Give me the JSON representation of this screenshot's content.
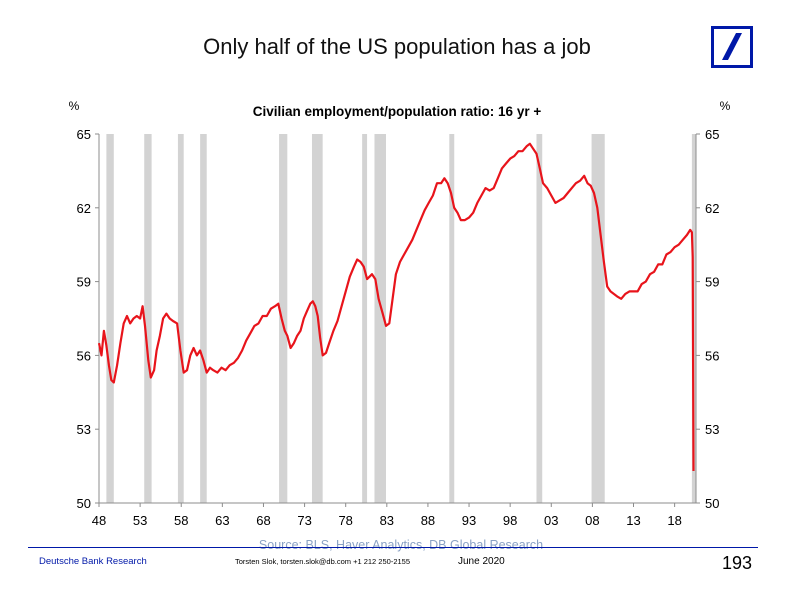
{
  "slide": {
    "title": "Only half of the US population has a job",
    "page_number": "193",
    "footer_org": "Deutsche Bank Research",
    "footer_contact": "Torsten Slok, torsten.slok@db.com  +1 212 250-2155",
    "footer_date": "June 2020",
    "source": "Source: BLS, Haver Analytics, DB Global Research"
  },
  "colors": {
    "line": "#e8141b",
    "recession": "#d3d3d3",
    "brand_blue": "#0018a8",
    "source_text": "#8aa2c4"
  },
  "logo": {
    "icon": "deutsche-bank-slash-icon"
  },
  "chart_data": {
    "type": "line",
    "title": "Civilian employment/population ratio: 16 yr +",
    "left_axis_unit": "%",
    "right_axis_unit": "%",
    "xlim": [
      1948,
      2020.6
    ],
    "ylim": [
      50,
      65
    ],
    "yticks": [
      50,
      53,
      56,
      59,
      62,
      65
    ],
    "xtick_values": [
      1948,
      1953,
      1958,
      1963,
      1968,
      1973,
      1978,
      1983,
      1988,
      1993,
      1998,
      2003,
      2008,
      2013,
      2018
    ],
    "xtick_labels": [
      "48",
      "53",
      "58",
      "63",
      "68",
      "73",
      "78",
      "83",
      "88",
      "93",
      "98",
      "03",
      "08",
      "13",
      "18"
    ],
    "grid": false,
    "recessions": [
      [
        1948.9,
        1949.8
      ],
      [
        1953.5,
        1954.4
      ],
      [
        1957.6,
        1958.3
      ],
      [
        1960.3,
        1961.1
      ],
      [
        1969.9,
        1970.9
      ],
      [
        1973.9,
        1975.2
      ],
      [
        1980.0,
        1980.6
      ],
      [
        1981.5,
        1982.9
      ],
      [
        1990.6,
        1991.2
      ],
      [
        2001.2,
        2001.9
      ],
      [
        2007.9,
        2009.5
      ],
      [
        2020.1,
        2020.4
      ]
    ],
    "series": [
      {
        "color": "#e8141b",
        "points": [
          [
            1948.0,
            56.5
          ],
          [
            1948.3,
            56.0
          ],
          [
            1948.6,
            57.0
          ],
          [
            1948.9,
            56.4
          ],
          [
            1949.2,
            55.6
          ],
          [
            1949.5,
            55.0
          ],
          [
            1949.8,
            54.9
          ],
          [
            1950.2,
            55.6
          ],
          [
            1950.6,
            56.5
          ],
          [
            1951.0,
            57.3
          ],
          [
            1951.4,
            57.6
          ],
          [
            1951.8,
            57.3
          ],
          [
            1952.2,
            57.5
          ],
          [
            1952.6,
            57.6
          ],
          [
            1953.0,
            57.5
          ],
          [
            1953.3,
            58.0
          ],
          [
            1953.6,
            57.2
          ],
          [
            1954.0,
            55.8
          ],
          [
            1954.3,
            55.1
          ],
          [
            1954.7,
            55.4
          ],
          [
            1955.0,
            56.2
          ],
          [
            1955.4,
            56.8
          ],
          [
            1955.8,
            57.5
          ],
          [
            1956.2,
            57.7
          ],
          [
            1956.6,
            57.5
          ],
          [
            1957.0,
            57.4
          ],
          [
            1957.5,
            57.3
          ],
          [
            1957.9,
            56.2
          ],
          [
            1958.3,
            55.3
          ],
          [
            1958.7,
            55.4
          ],
          [
            1959.1,
            56.0
          ],
          [
            1959.5,
            56.3
          ],
          [
            1959.9,
            56.0
          ],
          [
            1960.3,
            56.2
          ],
          [
            1960.7,
            55.8
          ],
          [
            1961.1,
            55.3
          ],
          [
            1961.5,
            55.5
          ],
          [
            1961.9,
            55.4
          ],
          [
            1962.4,
            55.3
          ],
          [
            1962.9,
            55.5
          ],
          [
            1963.4,
            55.4
          ],
          [
            1963.9,
            55.6
          ],
          [
            1964.4,
            55.7
          ],
          [
            1964.9,
            55.9
          ],
          [
            1965.4,
            56.2
          ],
          [
            1965.9,
            56.6
          ],
          [
            1966.4,
            56.9
          ],
          [
            1966.9,
            57.2
          ],
          [
            1967.4,
            57.3
          ],
          [
            1967.9,
            57.6
          ],
          [
            1968.4,
            57.6
          ],
          [
            1968.9,
            57.9
          ],
          [
            1969.4,
            58.0
          ],
          [
            1969.8,
            58.1
          ],
          [
            1970.2,
            57.5
          ],
          [
            1970.6,
            57.0
          ],
          [
            1970.9,
            56.8
          ],
          [
            1971.3,
            56.3
          ],
          [
            1971.7,
            56.5
          ],
          [
            1972.1,
            56.8
          ],
          [
            1972.5,
            57.0
          ],
          [
            1972.9,
            57.5
          ],
          [
            1973.3,
            57.8
          ],
          [
            1973.7,
            58.1
          ],
          [
            1974.0,
            58.2
          ],
          [
            1974.3,
            58.0
          ],
          [
            1974.6,
            57.6
          ],
          [
            1974.9,
            56.7
          ],
          [
            1975.2,
            56.0
          ],
          [
            1975.6,
            56.1
          ],
          [
            1976.0,
            56.5
          ],
          [
            1976.5,
            57.0
          ],
          [
            1977.0,
            57.4
          ],
          [
            1977.5,
            58.0
          ],
          [
            1978.0,
            58.6
          ],
          [
            1978.5,
            59.2
          ],
          [
            1979.0,
            59.6
          ],
          [
            1979.4,
            59.9
          ],
          [
            1979.8,
            59.8
          ],
          [
            1980.2,
            59.6
          ],
          [
            1980.6,
            59.1
          ],
          [
            1980.9,
            59.2
          ],
          [
            1981.2,
            59.3
          ],
          [
            1981.6,
            59.1
          ],
          [
            1982.0,
            58.3
          ],
          [
            1982.5,
            57.7
          ],
          [
            1982.9,
            57.2
          ],
          [
            1983.3,
            57.3
          ],
          [
            1983.7,
            58.3
          ],
          [
            1984.1,
            59.3
          ],
          [
            1984.6,
            59.8
          ],
          [
            1985.1,
            60.1
          ],
          [
            1985.6,
            60.4
          ],
          [
            1986.1,
            60.7
          ],
          [
            1986.6,
            61.1
          ],
          [
            1987.1,
            61.5
          ],
          [
            1987.6,
            61.9
          ],
          [
            1988.1,
            62.2
          ],
          [
            1988.6,
            62.5
          ],
          [
            1989.1,
            63.0
          ],
          [
            1989.6,
            63.0
          ],
          [
            1990.0,
            63.2
          ],
          [
            1990.4,
            63.0
          ],
          [
            1990.8,
            62.6
          ],
          [
            1991.2,
            62.0
          ],
          [
            1991.6,
            61.8
          ],
          [
            1992.0,
            61.5
          ],
          [
            1992.5,
            61.5
          ],
          [
            1993.0,
            61.6
          ],
          [
            1993.5,
            61.8
          ],
          [
            1994.0,
            62.2
          ],
          [
            1994.5,
            62.5
          ],
          [
            1995.0,
            62.8
          ],
          [
            1995.5,
            62.7
          ],
          [
            1996.0,
            62.8
          ],
          [
            1996.5,
            63.2
          ],
          [
            1997.0,
            63.6
          ],
          [
            1997.5,
            63.8
          ],
          [
            1998.0,
            64.0
          ],
          [
            1998.5,
            64.1
          ],
          [
            1999.0,
            64.3
          ],
          [
            1999.5,
            64.3
          ],
          [
            2000.0,
            64.5
          ],
          [
            2000.4,
            64.6
          ],
          [
            2000.8,
            64.4
          ],
          [
            2001.2,
            64.2
          ],
          [
            2001.6,
            63.6
          ],
          [
            2002.0,
            63.0
          ],
          [
            2002.5,
            62.8
          ],
          [
            2003.0,
            62.5
          ],
          [
            2003.5,
            62.2
          ],
          [
            2004.0,
            62.3
          ],
          [
            2004.5,
            62.4
          ],
          [
            2005.0,
            62.6
          ],
          [
            2005.5,
            62.8
          ],
          [
            2006.0,
            63.0
          ],
          [
            2006.5,
            63.1
          ],
          [
            2007.0,
            63.3
          ],
          [
            2007.4,
            63.0
          ],
          [
            2007.8,
            62.9
          ],
          [
            2008.2,
            62.6
          ],
          [
            2008.6,
            62.0
          ],
          [
            2009.0,
            60.9
          ],
          [
            2009.4,
            59.8
          ],
          [
            2009.8,
            58.8
          ],
          [
            2010.2,
            58.6
          ],
          [
            2010.6,
            58.5
          ],
          [
            2011.0,
            58.4
          ],
          [
            2011.5,
            58.3
          ],
          [
            2012.0,
            58.5
          ],
          [
            2012.5,
            58.6
          ],
          [
            2013.0,
            58.6
          ],
          [
            2013.5,
            58.6
          ],
          [
            2014.0,
            58.9
          ],
          [
            2014.5,
            59.0
          ],
          [
            2015.0,
            59.3
          ],
          [
            2015.5,
            59.4
          ],
          [
            2016.0,
            59.7
          ],
          [
            2016.5,
            59.7
          ],
          [
            2017.0,
            60.1
          ],
          [
            2017.5,
            60.2
          ],
          [
            2018.0,
            60.4
          ],
          [
            2018.5,
            60.5
          ],
          [
            2019.0,
            60.7
          ],
          [
            2019.5,
            60.9
          ],
          [
            2019.9,
            61.1
          ],
          [
            2020.1,
            61.0
          ],
          [
            2020.2,
            60.0
          ],
          [
            2020.3,
            51.3
          ]
        ]
      }
    ]
  }
}
